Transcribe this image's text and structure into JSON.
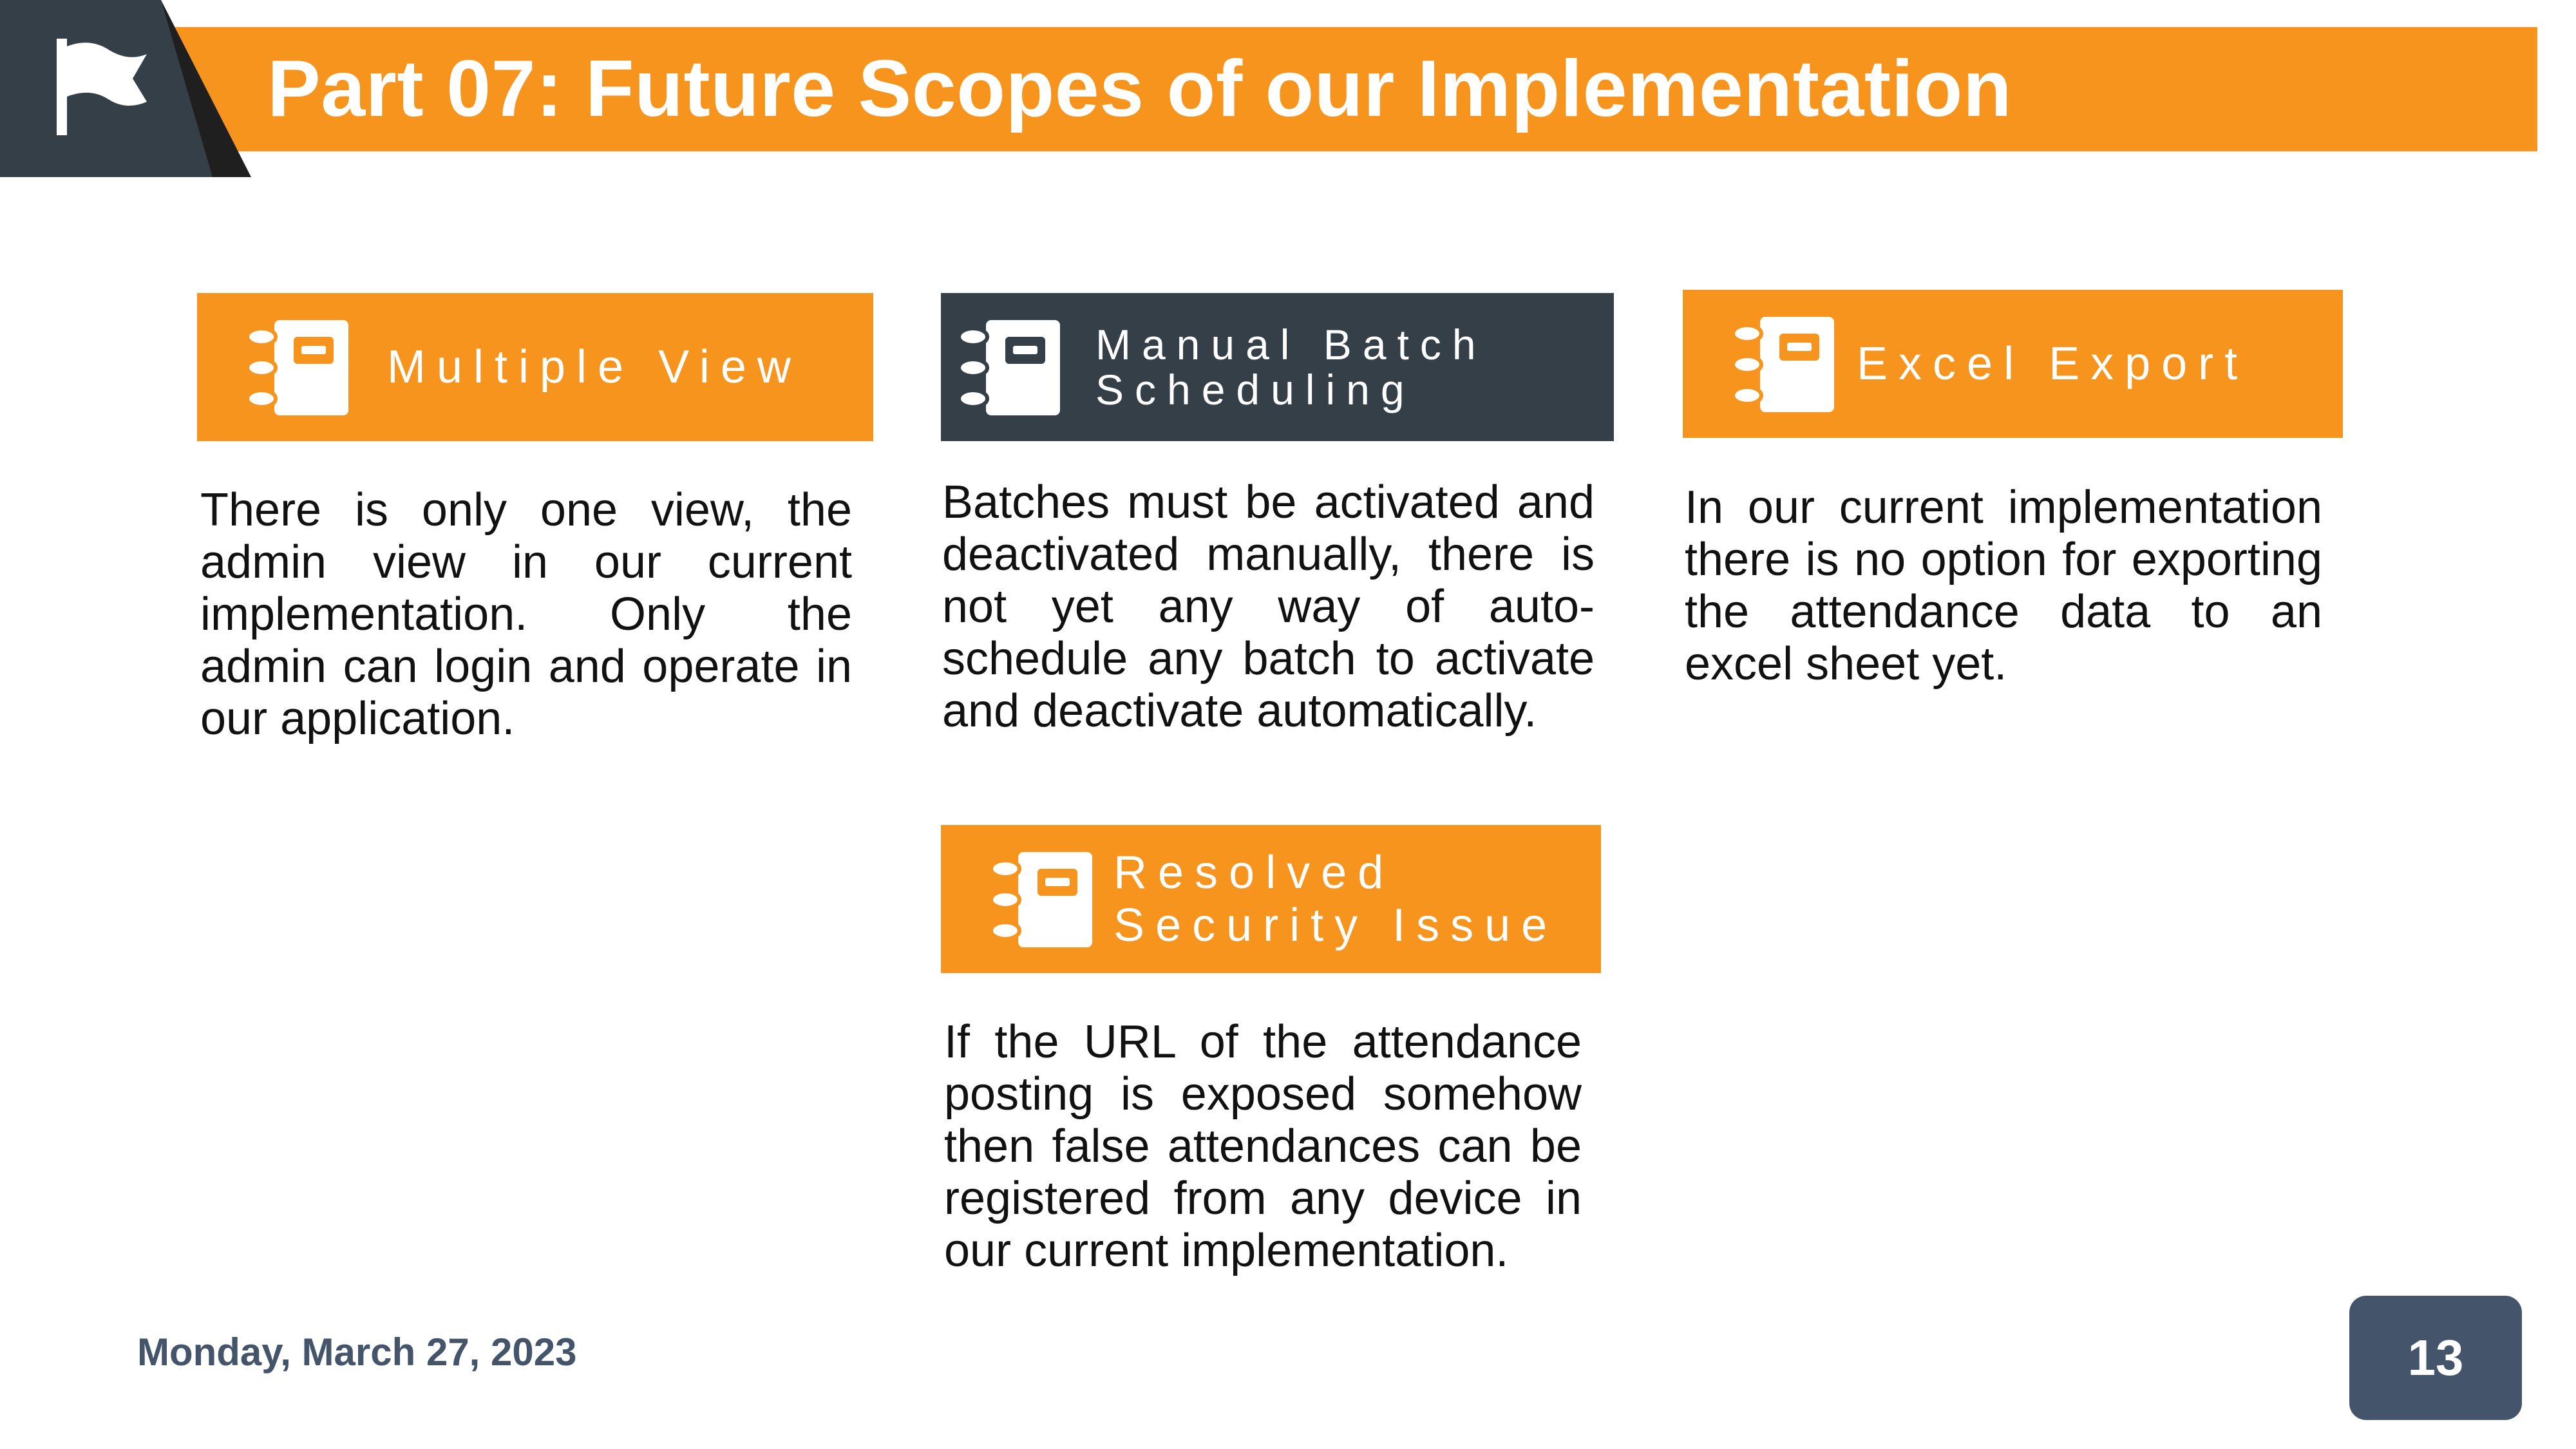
{
  "slide": {
    "title": "Part 07: Future Scopes of our Implementation",
    "date": "Monday, March 27, 2023",
    "page_number": "13",
    "accent_color": "#f7941d",
    "dark_color": "#353f48",
    "icons": {
      "header": "flag-icon",
      "card": "notebook-icon"
    }
  },
  "cards": [
    {
      "title": "Multiple View",
      "body": "There is only one view, the admin view in our current implementation. Only the admin can login and operate in our application."
    },
    {
      "title": "Manual Batch\nScheduling",
      "body": "Batches must be activated and deactivated manually, there is not yet any way of auto-schedule any batch to activate and deactivate automatically."
    },
    {
      "title": "Excel Export",
      "body": "In our current implementation there is no option for exporting the attendance data to an excel sheet yet."
    },
    {
      "title": "Resolved\nSecurity Issue",
      "body": "If the URL of the attendance posting is exposed somehow then false attendances can be registered from any device in our current implementation."
    }
  ]
}
